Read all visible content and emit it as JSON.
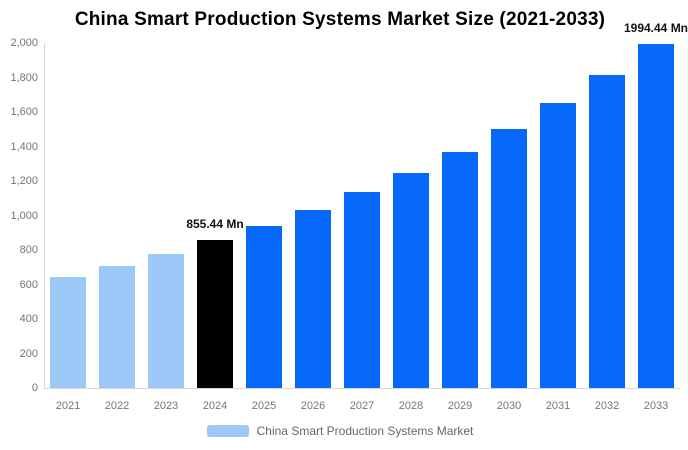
{
  "title": "China Smart Production Systems Market Size (2021-2033)",
  "chart_data": {
    "type": "bar",
    "title": "China Smart Production Systems Market Size (2021-2033)",
    "unit": "Mn",
    "categories": [
      "2021",
      "2022",
      "2023",
      "2024",
      "2025",
      "2026",
      "2027",
      "2028",
      "2029",
      "2030",
      "2031",
      "2032",
      "2033"
    ],
    "series": [
      {
        "name": "China Smart Production Systems Market",
        "values": [
          645,
          709,
          779,
          855.44,
          939.8,
          1032.5,
          1134.3,
          1246.1,
          1369.0,
          1503.9,
          1652.2,
          1815.1,
          1994.44
        ]
      }
    ],
    "bar_colors": [
      "#9DC9F8",
      "#9DC9F8",
      "#9DC9F8",
      "#000000",
      "#0669FB",
      "#0669FB",
      "#0669FB",
      "#0669FB",
      "#0669FB",
      "#0669FB",
      "#0669FB",
      "#0669FB",
      "#0669FB"
    ],
    "annotations": [
      {
        "category": "2024",
        "text": "855.44 Mn"
      },
      {
        "category": "2033",
        "text": "1994.44 Mn"
      }
    ],
    "xlabel": "",
    "ylabel": "",
    "ylim": [
      0,
      2000
    ],
    "ytick_step": 200,
    "ytick_labels": [
      "0",
      "200",
      "400",
      "600",
      "800",
      "1,000",
      "1,200",
      "1,400",
      "1,600",
      "1,800",
      "2,000"
    ],
    "grid": false,
    "legend_position": "bottom"
  },
  "legend": {
    "label": "China Smart Production Systems Market",
    "swatch_color": "#9DC9F8"
  },
  "colors": {
    "historical_bar": "#9DC9F8",
    "highlight_bar": "#000000",
    "forecast_bar": "#0669FB",
    "axis_line": "#D8D8D8",
    "tick_text": "#757575",
    "legend_text": "#666666",
    "title_text": "#000000"
  }
}
